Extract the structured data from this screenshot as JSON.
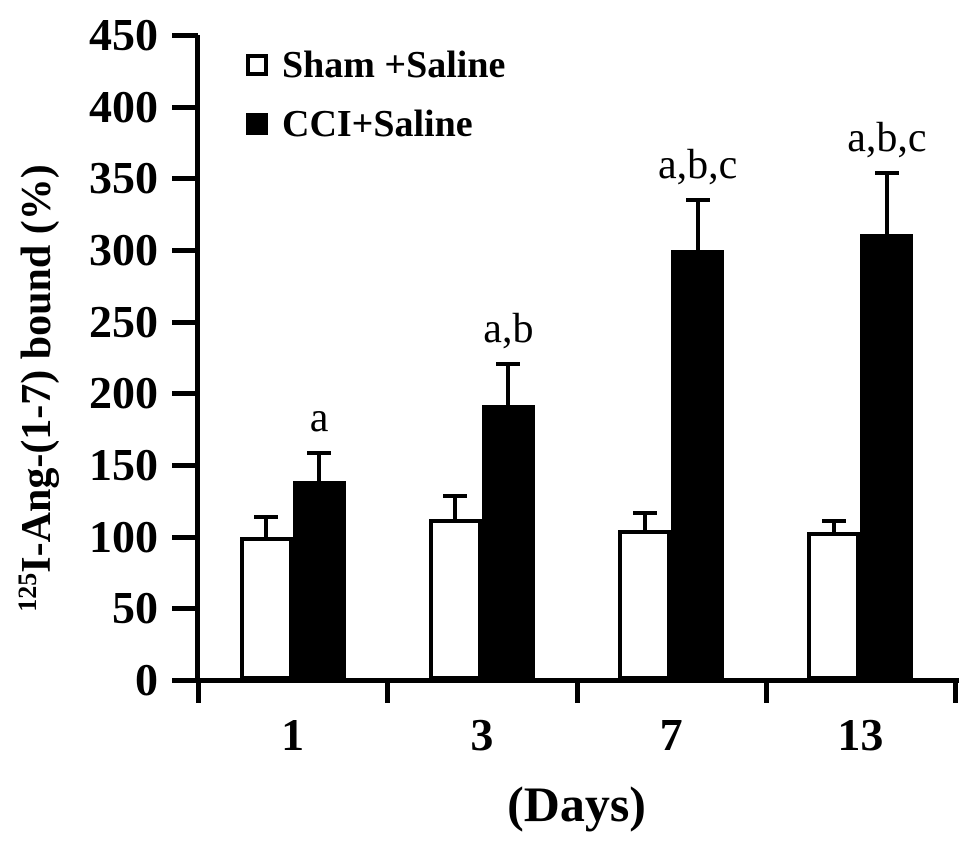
{
  "figure": {
    "background": "#ffffff",
    "axis_color": "#000000"
  },
  "legend": {
    "items": [
      {
        "label": "Sham +Saline",
        "swatch": "open-square",
        "fill": "#ffffff"
      },
      {
        "label": "CCI+Saline",
        "swatch": "filled-square",
        "fill": "#000000"
      }
    ]
  },
  "y_axis": {
    "label_superscript": "125",
    "label_main": "I-Ang-(1-7) bound (%)",
    "ticks": [
      450,
      400,
      350,
      300,
      250,
      200,
      150,
      100,
      50,
      0
    ]
  },
  "x_axis": {
    "title": "(Days)",
    "categories": [
      "1",
      "3",
      "7",
      "13"
    ]
  },
  "chart_data": {
    "type": "bar",
    "title": "",
    "xlabel": "(Days)",
    "ylabel": "125I-Ang-(1-7) bound (%)",
    "ylim": [
      0,
      450
    ],
    "ytick_step": 50,
    "grid": false,
    "error_bars": true,
    "legend_position": "top-left-inside",
    "categories": [
      "1",
      "3",
      "7",
      "13"
    ],
    "series": [
      {
        "name": "Sham +Saline",
        "fill": "#ffffff",
        "values": [
          100,
          112,
          105,
          103
        ],
        "errors_plus": [
          15,
          18,
          13,
          9
        ],
        "sig_labels": [
          "",
          "",
          "",
          ""
        ]
      },
      {
        "name": "CCI+Saline",
        "fill": "#000000",
        "values": [
          139,
          192,
          300,
          311
        ],
        "errors_plus": [
          21,
          30,
          36,
          44
        ],
        "sig_labels": [
          "a",
          "a,b",
          "a,b,c",
          "a,b,c"
        ]
      }
    ]
  }
}
